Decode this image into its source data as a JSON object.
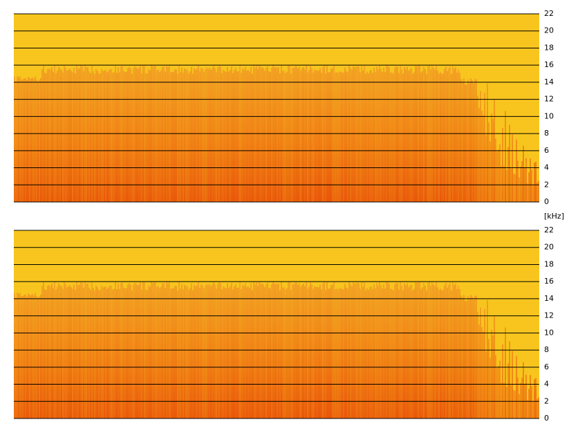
{
  "chart_data": [
    {
      "type": "spectrogram",
      "ylim": [
        0,
        22
      ],
      "yticks": [
        0,
        2,
        4,
        6,
        8,
        10,
        12,
        14,
        16,
        18,
        20,
        22
      ],
      "grid": true
    },
    {
      "type": "spectrogram",
      "y_label": "[kHz]",
      "ylim": [
        0,
        22
      ],
      "yticks": [
        0,
        2,
        4,
        6,
        8,
        10,
        12,
        14,
        16,
        18,
        20,
        22
      ],
      "grid": true
    }
  ]
}
